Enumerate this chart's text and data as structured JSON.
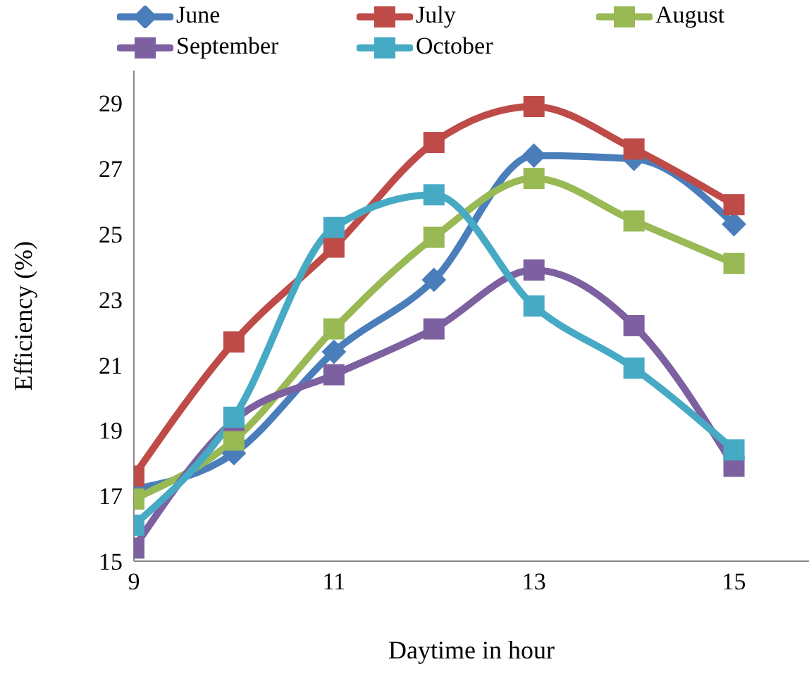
{
  "chart_data": {
    "type": "line",
    "xlabel": "Daytime in hour",
    "ylabel": "Efficiency  (%)",
    "x": [
      9,
      10,
      11,
      12,
      13,
      14,
      15
    ],
    "xlim": [
      9,
      15.75
    ],
    "xticks": [
      9,
      11,
      13,
      15
    ],
    "ylim": [
      15,
      30
    ],
    "yticks": [
      15,
      17,
      19,
      21,
      23,
      25,
      27,
      29
    ],
    "grid": false,
    "legend": "top",
    "line_style": "solid",
    "series": [
      {
        "name": "June",
        "color": "#4a7ebb",
        "marker": "diamond",
        "values": [
          17.2,
          18.3,
          21.4,
          23.6,
          27.4,
          27.3,
          25.3
        ]
      },
      {
        "name": "July",
        "color": "#be4b48",
        "marker": "square",
        "values": [
          17.6,
          21.7,
          24.6,
          27.8,
          28.9,
          27.6,
          25.9
        ]
      },
      {
        "name": "August",
        "color": "#98b954",
        "marker": "square",
        "values": [
          16.9,
          18.7,
          22.1,
          24.9,
          26.7,
          25.4,
          24.1
        ]
      },
      {
        "name": "September",
        "color": "#7d60a0",
        "marker": "square",
        "values": [
          15.4,
          19.3,
          20.7,
          22.1,
          23.9,
          22.2,
          17.9
        ]
      },
      {
        "name": "October",
        "color": "#46aac5",
        "marker": "square",
        "values": [
          16.1,
          19.4,
          25.2,
          26.2,
          22.8,
          20.9,
          18.4
        ]
      }
    ]
  }
}
